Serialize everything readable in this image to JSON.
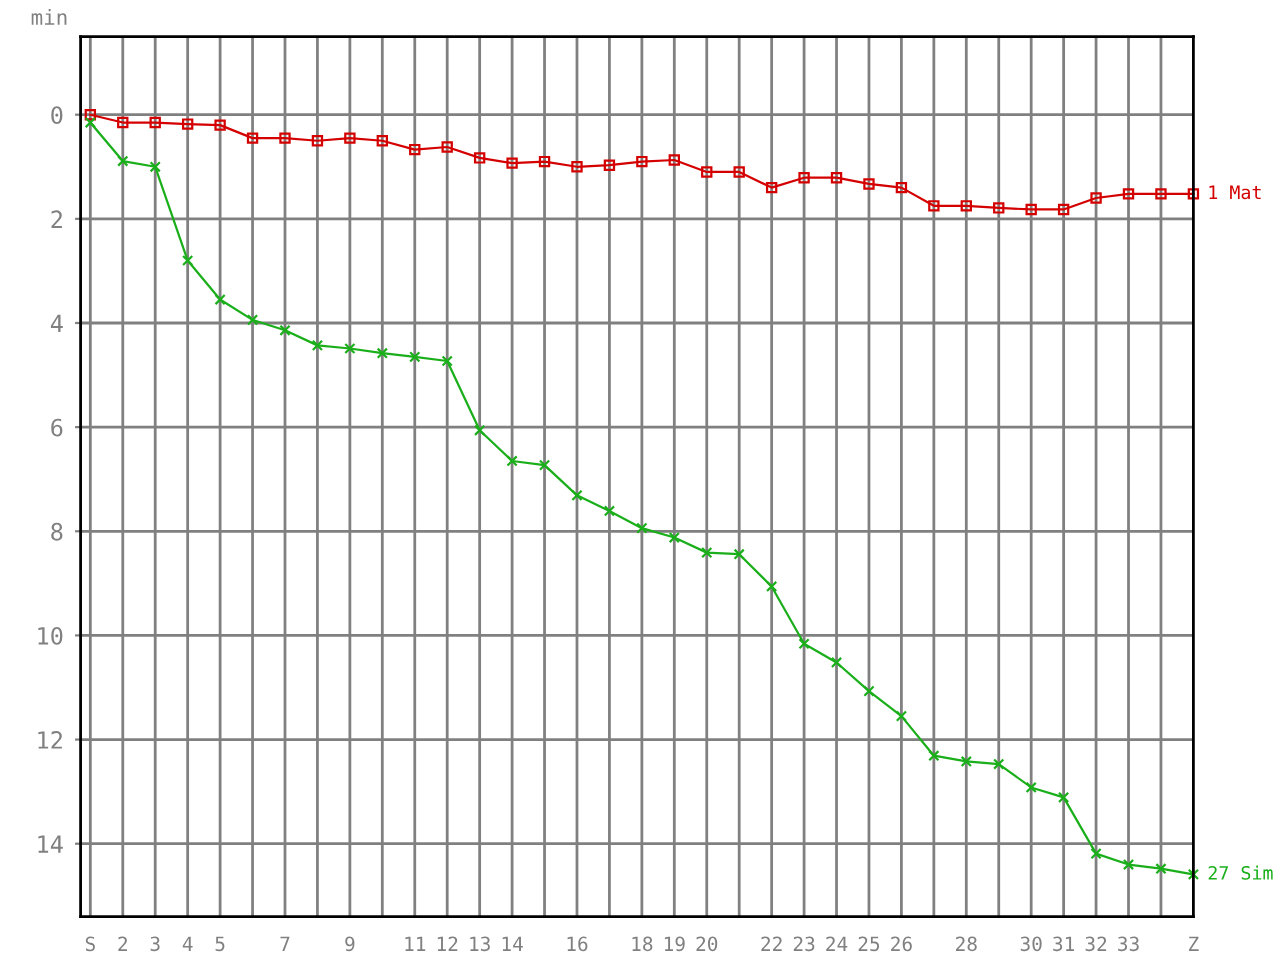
{
  "chart_data": {
    "type": "line",
    "ylabel": "min",
    "categories": [
      "S",
      "2",
      "3",
      "4",
      "5",
      null,
      "7",
      null,
      "9",
      null,
      "11",
      "12",
      "13",
      "14",
      null,
      "16",
      null,
      "18",
      "19",
      "20",
      null,
      "22",
      "23",
      "24",
      "25",
      "26",
      null,
      "28",
      null,
      "30",
      "31",
      "32",
      "33",
      null,
      "Z"
    ],
    "ylim": [
      15.4,
      -1.5
    ],
    "yticks": [
      0,
      2,
      4,
      6,
      8,
      10,
      12,
      14
    ],
    "grid": true,
    "series": [
      {
        "name": "1 Mat",
        "color": "#d40000",
        "marker": "square",
        "values": [
          0,
          0.15,
          0.15,
          0.18,
          0.2,
          0.45,
          0.45,
          0.5,
          0.45,
          0.5,
          0.67,
          0.62,
          0.83,
          0.93,
          0.9,
          1.0,
          0.97,
          0.9,
          0.87,
          1.1,
          1.1,
          1.4,
          1.21,
          1.21,
          1.33,
          1.4,
          1.75,
          1.75,
          1.79,
          1.82,
          1.82,
          1.6,
          1.52,
          1.52,
          1.52
        ]
      },
      {
        "name": "27 Sim",
        "color": "#1aaf1a",
        "marker": "cross",
        "values": [
          0.15,
          0.89,
          1.0,
          2.8,
          3.55,
          3.94,
          4.14,
          4.43,
          4.49,
          4.58,
          4.65,
          4.73,
          6.06,
          6.65,
          6.73,
          7.31,
          7.61,
          7.94,
          8.12,
          8.41,
          8.44,
          9.06,
          10.16,
          10.52,
          11.07,
          11.55,
          12.31,
          12.42,
          12.47,
          12.92,
          13.11,
          14.19,
          14.4,
          14.48,
          14.59
        ]
      }
    ]
  }
}
